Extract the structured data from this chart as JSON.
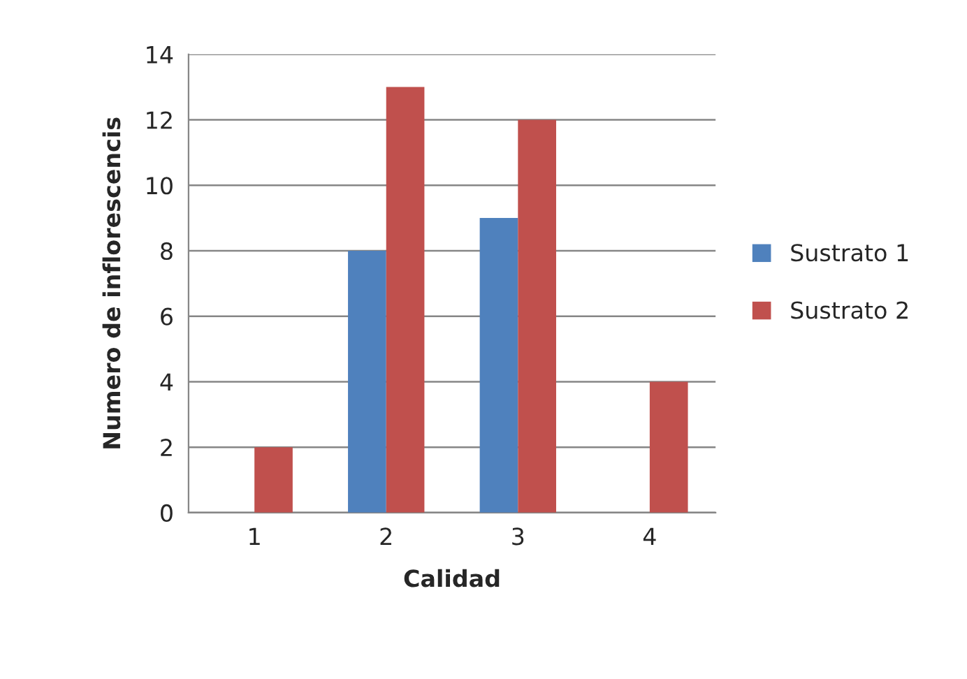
{
  "chart_data": {
    "type": "bar",
    "xlabel": "Calidad",
    "ylabel": "Numero de inflorescencis",
    "categories": [
      "1",
      "2",
      "3",
      "4"
    ],
    "series": [
      {
        "name": "Sustrato 1",
        "color": "#4f81bd",
        "values": [
          null,
          8,
          9,
          null
        ]
      },
      {
        "name": "Sustrato 2",
        "color": "#c0504d",
        "values": [
          2,
          13,
          12,
          4
        ]
      }
    ],
    "ylim": [
      0,
      14
    ],
    "yticks": [
      0,
      2,
      4,
      6,
      8,
      10,
      12,
      14
    ],
    "grid": "y",
    "legend": "right"
  }
}
